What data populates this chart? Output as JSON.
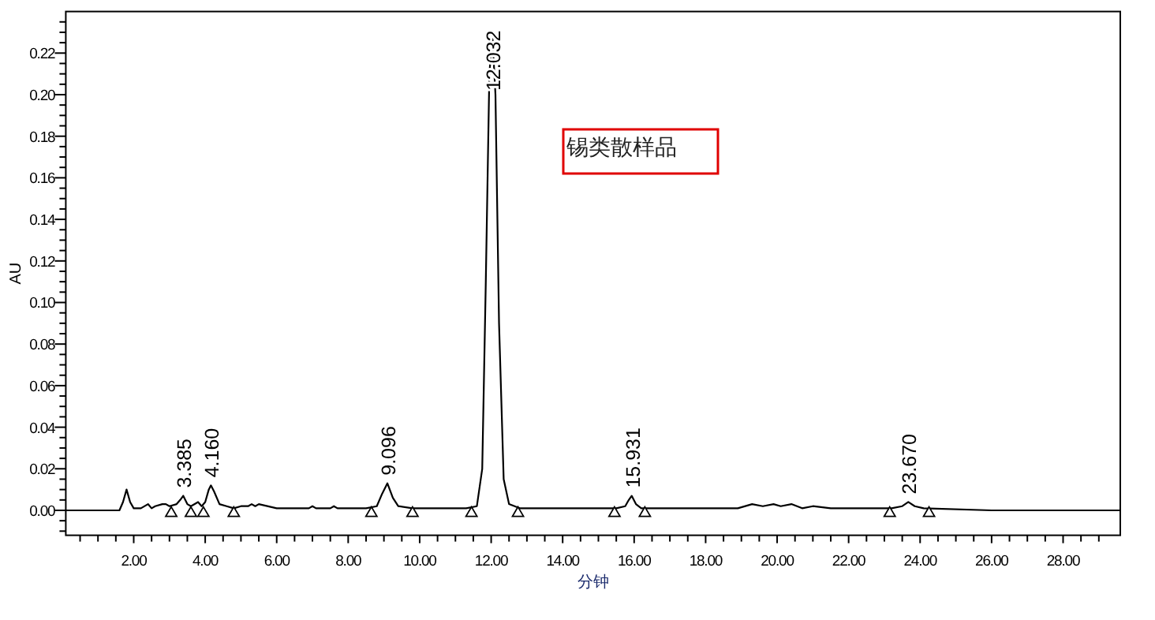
{
  "chart_data": {
    "type": "line",
    "xlabel": "分钟",
    "ylabel": "AU",
    "xlim": [
      0.1,
      29.6
    ],
    "ylim": [
      -0.012,
      0.24
    ],
    "xticks": [
      {
        "value": 0.5,
        "label": null
      },
      {
        "value": 1,
        "label": null
      },
      {
        "value": 1.5,
        "label": null
      },
      {
        "value": 2,
        "label": "2.00"
      },
      {
        "value": 2.5,
        "label": null
      },
      {
        "value": 3,
        "label": null
      },
      {
        "value": 3.5,
        "label": null
      },
      {
        "value": 4,
        "label": "4.00"
      },
      {
        "value": 4.5,
        "label": null
      },
      {
        "value": 5,
        "label": null
      },
      {
        "value": 5.5,
        "label": null
      },
      {
        "value": 6,
        "label": "6.00"
      },
      {
        "value": 6.5,
        "label": null
      },
      {
        "value": 7,
        "label": null
      },
      {
        "value": 7.5,
        "label": null
      },
      {
        "value": 8,
        "label": "8.00"
      },
      {
        "value": 8.5,
        "label": null
      },
      {
        "value": 9,
        "label": null
      },
      {
        "value": 9.5,
        "label": null
      },
      {
        "value": 10,
        "label": "10.00"
      },
      {
        "value": 10.5,
        "label": null
      },
      {
        "value": 11,
        "label": null
      },
      {
        "value": 11.5,
        "label": null
      },
      {
        "value": 12,
        "label": "12.00"
      },
      {
        "value": 12.5,
        "label": null
      },
      {
        "value": 13,
        "label": null
      },
      {
        "value": 13.5,
        "label": null
      },
      {
        "value": 14,
        "label": "14.00"
      },
      {
        "value": 14.5,
        "label": null
      },
      {
        "value": 15,
        "label": null
      },
      {
        "value": 15.5,
        "label": null
      },
      {
        "value": 16,
        "label": "16.00"
      },
      {
        "value": 16.5,
        "label": null
      },
      {
        "value": 17,
        "label": null
      },
      {
        "value": 17.5,
        "label": null
      },
      {
        "value": 18,
        "label": "18.00"
      },
      {
        "value": 18.5,
        "label": null
      },
      {
        "value": 19,
        "label": null
      },
      {
        "value": 19.5,
        "label": null
      },
      {
        "value": 20,
        "label": "20.00"
      },
      {
        "value": 20.5,
        "label": null
      },
      {
        "value": 21,
        "label": null
      },
      {
        "value": 21.5,
        "label": null
      },
      {
        "value": 22,
        "label": "22.00"
      },
      {
        "value": 22.5,
        "label": null
      },
      {
        "value": 23,
        "label": null
      },
      {
        "value": 23.5,
        "label": null
      },
      {
        "value": 24,
        "label": "24.00"
      },
      {
        "value": 24.5,
        "label": null
      },
      {
        "value": 25,
        "label": null
      },
      {
        "value": 25.5,
        "label": null
      },
      {
        "value": 26,
        "label": "26.00"
      },
      {
        "value": 26.5,
        "label": null
      },
      {
        "value": 27,
        "label": null
      },
      {
        "value": 27.5,
        "label": null
      },
      {
        "value": 28,
        "label": "28.00"
      },
      {
        "value": 28.5,
        "label": null
      },
      {
        "value": 29,
        "label": null
      }
    ],
    "yticks": [
      {
        "value": -0.01,
        "label": null
      },
      {
        "value": -0.005,
        "label": null
      },
      {
        "value": 0,
        "label": "0.00"
      },
      {
        "value": 0.005,
        "label": null
      },
      {
        "value": 0.01,
        "label": null
      },
      {
        "value": 0.015,
        "label": null
      },
      {
        "value": 0.02,
        "label": "0.02"
      },
      {
        "value": 0.025,
        "label": null
      },
      {
        "value": 0.03,
        "label": null
      },
      {
        "value": 0.035,
        "label": null
      },
      {
        "value": 0.04,
        "label": "0.04"
      },
      {
        "value": 0.045,
        "label": null
      },
      {
        "value": 0.05,
        "label": null
      },
      {
        "value": 0.055,
        "label": null
      },
      {
        "value": 0.06,
        "label": "0.06"
      },
      {
        "value": 0.065,
        "label": null
      },
      {
        "value": 0.07,
        "label": null
      },
      {
        "value": 0.075,
        "label": null
      },
      {
        "value": 0.08,
        "label": "0.08"
      },
      {
        "value": 0.085,
        "label": null
      },
      {
        "value": 0.09,
        "label": null
      },
      {
        "value": 0.095,
        "label": null
      },
      {
        "value": 0.1,
        "label": "0.10"
      },
      {
        "value": 0.105,
        "label": null
      },
      {
        "value": 0.11,
        "label": null
      },
      {
        "value": 0.115,
        "label": null
      },
      {
        "value": 0.12,
        "label": "0.12"
      },
      {
        "value": 0.125,
        "label": null
      },
      {
        "value": 0.13,
        "label": null
      },
      {
        "value": 0.135,
        "label": null
      },
      {
        "value": 0.14,
        "label": "0.14"
      },
      {
        "value": 0.145,
        "label": null
      },
      {
        "value": 0.15,
        "label": null
      },
      {
        "value": 0.155,
        "label": null
      },
      {
        "value": 0.16,
        "label": "0.16"
      },
      {
        "value": 0.165,
        "label": null
      },
      {
        "value": 0.17,
        "label": null
      },
      {
        "value": 0.175,
        "label": null
      },
      {
        "value": 0.18,
        "label": "0.18"
      },
      {
        "value": 0.185,
        "label": null
      },
      {
        "value": 0.19,
        "label": null
      },
      {
        "value": 0.195,
        "label": null
      },
      {
        "value": 0.2,
        "label": "0.20"
      },
      {
        "value": 0.205,
        "label": null
      },
      {
        "value": 0.21,
        "label": null
      },
      {
        "value": 0.215,
        "label": null
      },
      {
        "value": 0.22,
        "label": "0.22"
      },
      {
        "value": 0.225,
        "label": null
      },
      {
        "value": 0.23,
        "label": null
      },
      {
        "value": 0.235,
        "label": null
      }
    ],
    "grid": false,
    "series": [
      {
        "color": "#000000",
        "x": [
          0.1,
          1.6,
          1.7,
          1.8,
          1.9,
          2.0,
          2.2,
          2.4,
          2.5,
          2.6,
          2.8,
          2.9,
          3.0,
          3.2,
          3.3,
          3.385,
          3.5,
          3.6,
          3.8,
          3.9,
          4.0,
          4.1,
          4.16,
          4.25,
          4.4,
          4.6,
          4.8,
          5.0,
          5.2,
          5.3,
          5.4,
          5.5,
          6.0,
          6.9,
          7.0,
          7.1,
          7.5,
          7.6,
          7.7,
          8.5,
          8.8,
          8.95,
          9.096,
          9.25,
          9.4,
          9.8,
          11.3,
          11.6,
          11.75,
          11.85,
          11.95,
          12.032,
          12.12,
          12.22,
          12.35,
          12.5,
          12.8,
          15.5,
          15.75,
          15.85,
          15.931,
          16.05,
          16.2,
          18.9,
          19.3,
          19.6,
          19.9,
          20.1,
          20.4,
          20.7,
          21.0,
          21.5,
          23.2,
          23.5,
          23.67,
          23.85,
          24.1,
          26.0,
          29.6
        ],
        "values": [
          0.0,
          0.0,
          0.004,
          0.01,
          0.004,
          0.001,
          0.001,
          0.003,
          0.001,
          0.002,
          0.003,
          0.003,
          0.002,
          0.003,
          0.005,
          0.007,
          0.003,
          0.002,
          0.004,
          0.002,
          0.004,
          0.01,
          0.012,
          0.009,
          0.003,
          0.002,
          0.001,
          0.002,
          0.002,
          0.003,
          0.002,
          0.003,
          0.001,
          0.001,
          0.002,
          0.001,
          0.001,
          0.002,
          0.001,
          0.001,
          0.002,
          0.008,
          0.013,
          0.006,
          0.002,
          0.001,
          0.001,
          0.002,
          0.02,
          0.11,
          0.21,
          0.229,
          0.2,
          0.09,
          0.015,
          0.003,
          0.001,
          0.001,
          0.002,
          0.005,
          0.007,
          0.003,
          0.001,
          0.001,
          0.003,
          0.002,
          0.003,
          0.002,
          0.003,
          0.001,
          0.002,
          0.001,
          0.001,
          0.002,
          0.004,
          0.002,
          0.001,
          0.0,
          0.0
        ]
      },
      {
        "type": "scatter",
        "color": "#000000",
        "marker": "triangle",
        "x": [
          3.05,
          3.6,
          3.95,
          4.8,
          8.65,
          9.8,
          11.45,
          12.75,
          15.45,
          16.3,
          23.15,
          24.25
        ],
        "values": [
          -0.001,
          -0.001,
          -0.001,
          -0.001,
          -0.001,
          -0.001,
          -0.001,
          -0.001,
          -0.001,
          -0.001,
          -0.001,
          -0.001
        ]
      }
    ],
    "annotations": [
      {
        "text": "3.385",
        "x": 3.385,
        "y": 0.007
      },
      {
        "text": "4.160",
        "x": 4.16,
        "y": 0.012
      },
      {
        "text": "9.096",
        "x": 9.096,
        "y": 0.013
      },
      {
        "text": "12.032",
        "x": 12.032,
        "y": 0.229
      },
      {
        "text": "15.931",
        "x": 15.931,
        "y": 0.007
      },
      {
        "text": "23.670",
        "x": 23.67,
        "y": 0.004
      },
      "锡类散样品"
    ]
  }
}
